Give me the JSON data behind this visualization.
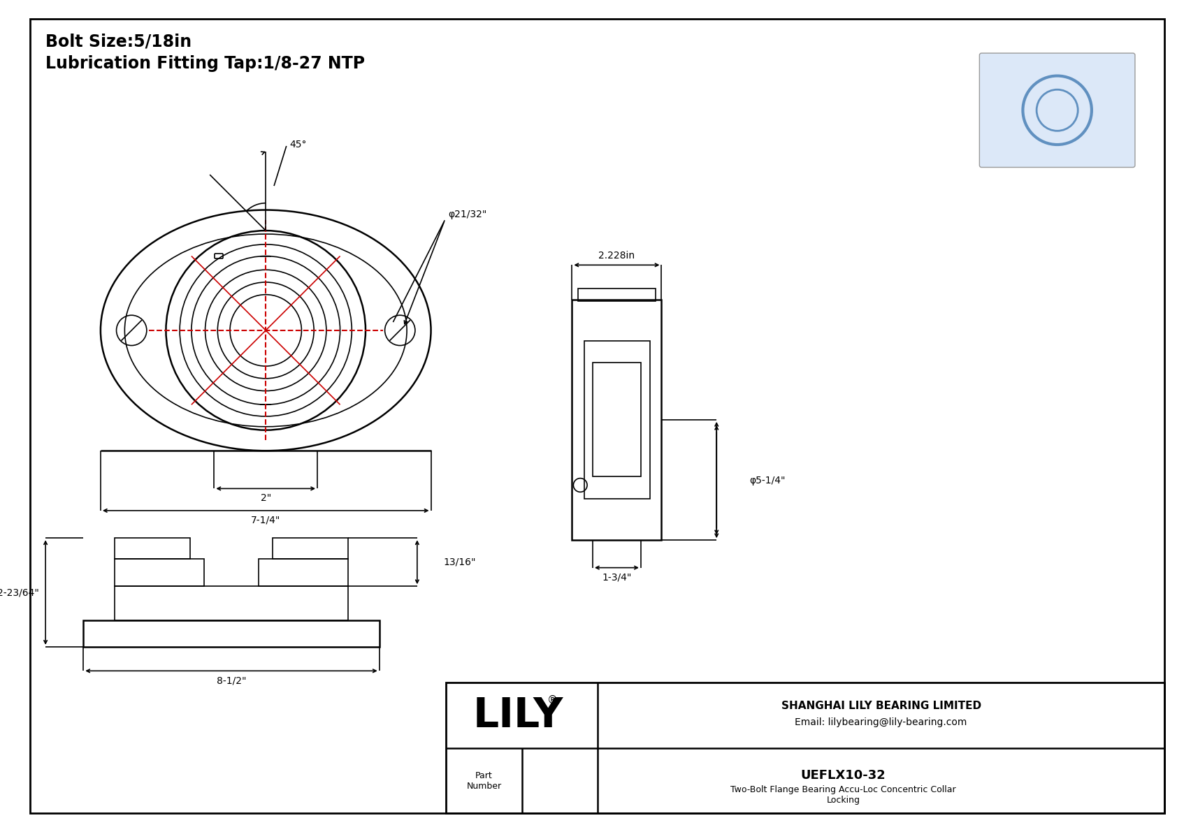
{
  "bg_color": "#ffffff",
  "line_color": "#000000",
  "red_color": "#cc0000",
  "title_line1": "Bolt Size:5/18in",
  "title_line2": "Lubrication Fitting Tap:1/8-27 NTP",
  "company": "SHANGHAI LILY BEARING LIMITED",
  "email": "Email: lilybearing@lily-bearing.com",
  "part_number_label": "Part\nNumber",
  "part_number": "UEFLX10-32",
  "part_desc": "Two-Bolt Flange Bearing Accu-Loc Concentric Collar\nLocking",
  "lily_text": "LILY",
  "reg_mark": "®",
  "dim_45": "45°",
  "dim_phi_21_32": "φ21/32\"",
  "dim_2in": "2\"",
  "dim_7_14": "7-1/4\"",
  "dim_2228": "2.228in",
  "dim_phi_5_14": "φ5-1/4\"",
  "dim_1_34": "1-3/4\"",
  "dim_13_16": "13/16\"",
  "dim_2_23_64": "2-23/64\"",
  "dim_8_12": "8-1/2\""
}
